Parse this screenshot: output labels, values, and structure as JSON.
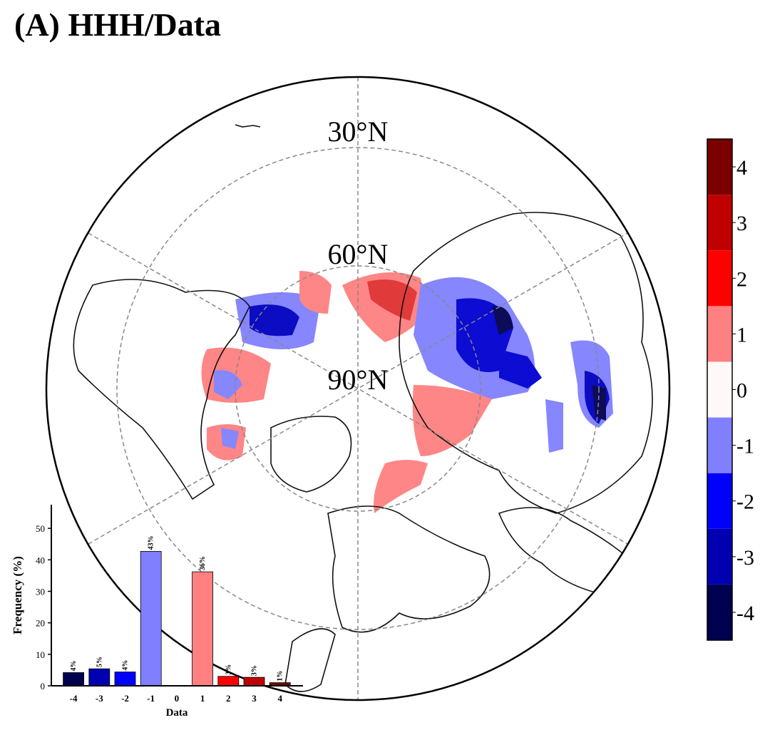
{
  "title": "(A) HHH/Data",
  "map": {
    "lat_labels": [
      "30°N",
      "60°N",
      "90°N"
    ]
  },
  "colorbar": {
    "lim": [
      -4.5,
      4.5
    ],
    "ticks": [
      -4,
      -3,
      -2,
      -1,
      0,
      1,
      2,
      3,
      4
    ],
    "colors": [
      "#000050",
      "#0000b0",
      "#0000ff",
      "#8080ff",
      "#fff8f8",
      "#ff8080",
      "#ff0000",
      "#c00000",
      "#7a0000"
    ]
  },
  "chart_data": {
    "type": "bar",
    "xlabel": "Data",
    "ylabel": "Frequency (%)",
    "categories": [
      "-4",
      "-3",
      "-2",
      "-1",
      "0",
      "1",
      "2",
      "3",
      "4"
    ],
    "values": [
      4.2,
      5.4,
      4.4,
      42.7,
      0,
      36.2,
      3.0,
      2.7,
      1.0
    ],
    "value_labels": [
      "4%",
      "5%",
      "4%",
      "43%",
      null,
      "36%",
      "3%",
      "3%",
      "1%"
    ],
    "colors": [
      "#000050",
      "#0000b0",
      "#0000ff",
      "#8080ff",
      "#fff8f8",
      "#ff8080",
      "#ff0000",
      "#c00000",
      "#7a0000"
    ],
    "ylim": [
      0,
      57.5
    ],
    "yticks": [
      0,
      10,
      20,
      30,
      40,
      50
    ]
  }
}
